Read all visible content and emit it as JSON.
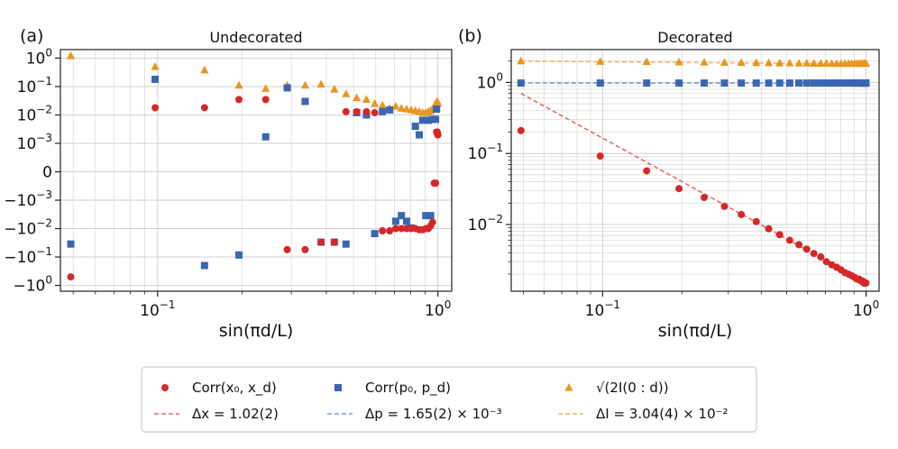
{
  "chart_data": [
    {
      "panel": "(a)",
      "title": "Undecorated",
      "type": "scatter",
      "xscale": "log",
      "yscale": "symlog",
      "xlim": [
        0.045,
        1.12
      ],
      "ylim": [
        -1.6,
        2.0
      ],
      "xlabel": "sin(πd/L)",
      "xticks": [
        {
          "value": 0.1,
          "base": "10",
          "exp": "−1"
        },
        {
          "value": 1.0,
          "base": "10",
          "exp": "0"
        }
      ],
      "yticks": [
        {
          "value": 1,
          "base": "10",
          "exp": "0"
        },
        {
          "value": 0.1,
          "base": "10",
          "exp": "−1"
        },
        {
          "value": 0.01,
          "base": "10",
          "exp": "−2"
        },
        {
          "value": 0.001,
          "base": "10",
          "exp": "−3"
        },
        {
          "value": 0,
          "base": "0",
          "exp": ""
        },
        {
          "value": -0.001,
          "base": "−10",
          "exp": "−3"
        },
        {
          "value": -0.01,
          "base": "−10",
          "exp": "−2"
        },
        {
          "value": -0.1,
          "base": "−10",
          "exp": "−1"
        },
        {
          "value": -1,
          "base": "−10",
          "exp": "0"
        }
      ],
      "series": [
        {
          "name": "Corr(x0, xd)",
          "marker": "circle",
          "color": "#d62728",
          "x": [
            0.049,
            0.098,
            0.147,
            0.195,
            0.243,
            0.29,
            0.336,
            0.383,
            0.427,
            0.47,
            0.513,
            0.556,
            0.595,
            0.634,
            0.673,
            0.707,
            0.741,
            0.773,
            0.803,
            0.831,
            0.858,
            0.882,
            0.905,
            0.924,
            0.942,
            0.957,
            0.97,
            0.981,
            0.989,
            0.995,
            0.999,
            1.0
          ],
          "y": [
            -0.5,
            0.018,
            0.018,
            0.035,
            0.035,
            -0.055,
            -0.055,
            -0.03,
            -0.03,
            0.013,
            0.013,
            0.013,
            0.012,
            -0.012,
            -0.012,
            -0.01,
            -0.01,
            -0.01,
            -0.01,
            -0.01,
            -0.011,
            -0.011,
            -0.01,
            -0.01,
            -0.008,
            -0.006,
            -0.0004,
            -0.0004,
            0.0025,
            0.0025,
            0.002,
            0.002
          ]
        },
        {
          "name": "Corr(p0, pd)",
          "marker": "square",
          "color": "#3a66b0",
          "x": [
            0.049,
            0.098,
            0.147,
            0.195,
            0.243,
            0.29,
            0.336,
            0.383,
            0.427,
            0.47,
            0.513,
            0.556,
            0.595,
            0.634,
            0.673,
            0.707,
            0.741,
            0.773,
            0.803,
            0.831,
            0.858,
            0.882,
            0.905,
            0.924,
            0.942,
            0.957,
            0.97,
            0.981,
            0.989
          ],
          "y": [
            -0.035,
            0.18,
            -0.2,
            -0.085,
            0.0017,
            0.09,
            0.03,
            -0.03,
            -0.03,
            -0.035,
            0.012,
            0.01,
            -0.015,
            0.013,
            0.015,
            -0.0055,
            -0.0035,
            -0.0055,
            -0.0095,
            0.004,
            0.002,
            0.0065,
            -0.0035,
            0.0065,
            -0.0035,
            0.007,
            0.007,
            0.007,
            0.016
          ]
        },
        {
          "name": "√(2I(0:d))",
          "marker": "triangle",
          "color": "#e8961e",
          "x": [
            0.049,
            0.098,
            0.147,
            0.195,
            0.243,
            0.29,
            0.336,
            0.383,
            0.427,
            0.47,
            0.513,
            0.556,
            0.595,
            0.634,
            0.673,
            0.707,
            0.741,
            0.773,
            0.803,
            0.831,
            0.858,
            0.882,
            0.905,
            0.924,
            0.942,
            0.957,
            0.97,
            0.981,
            0.989,
            0.995,
            0.999
          ],
          "y": [
            1.2,
            0.5,
            0.38,
            0.11,
            0.085,
            0.11,
            0.11,
            0.12,
            0.08,
            0.055,
            0.04,
            0.035,
            0.025,
            0.022,
            0.017,
            0.02,
            0.017,
            0.016,
            0.015,
            0.014,
            0.013,
            0.012,
            0.012,
            0.013,
            0.014,
            0.016,
            0.02,
            0.025,
            0.028,
            0.03,
            0.025
          ]
        }
      ]
    },
    {
      "panel": "(b)",
      "title": "Decorated",
      "type": "scatter",
      "xscale": "log",
      "yscale": "log",
      "xlim": [
        0.045,
        1.12
      ],
      "ylim": [
        0.00115,
        2.9
      ],
      "xlabel": "sin(πd/L)",
      "xticks": [
        {
          "value": 0.1,
          "base": "10",
          "exp": "−1"
        },
        {
          "value": 1.0,
          "base": "10",
          "exp": "0"
        }
      ],
      "yticks": [
        {
          "value": 1,
          "base": "10",
          "exp": "0"
        },
        {
          "value": 0.1,
          "base": "10",
          "exp": "−1"
        },
        {
          "value": 0.01,
          "base": "10",
          "exp": "−2"
        }
      ],
      "series": [
        {
          "name": "Corr(x0, xd)",
          "marker": "circle",
          "color": "#d62728",
          "x": [
            0.049,
            0.098,
            0.147,
            0.195,
            0.243,
            0.29,
            0.336,
            0.383,
            0.427,
            0.47,
            0.513,
            0.556,
            0.595,
            0.634,
            0.673,
            0.707,
            0.741,
            0.773,
            0.803,
            0.831,
            0.858,
            0.882,
            0.905,
            0.924,
            0.942,
            0.957,
            0.97,
            0.981,
            0.989,
            0.995,
            0.999
          ],
          "y": [
            0.21,
            0.092,
            0.057,
            0.032,
            0.024,
            0.018,
            0.0138,
            0.011,
            0.0087,
            0.0072,
            0.006,
            0.0052,
            0.0045,
            0.0039,
            0.0035,
            0.003,
            0.0027,
            0.0025,
            0.0023,
            0.0021,
            0.002,
            0.0019,
            0.0018,
            0.0017,
            0.0017,
            0.0016,
            0.0016,
            0.0015,
            0.0015,
            0.0015,
            0.0015
          ]
        },
        {
          "name": "Corr(p0, pd)",
          "marker": "square",
          "color": "#3a66b0",
          "x": [
            0.049,
            0.098,
            0.147,
            0.195,
            0.243,
            0.29,
            0.336,
            0.383,
            0.427,
            0.47,
            0.513,
            0.556,
            0.595,
            0.634,
            0.673,
            0.707,
            0.741,
            0.773,
            0.803,
            0.831,
            0.858,
            0.882,
            0.905,
            0.924,
            0.942,
            0.957,
            0.97,
            0.981,
            0.989,
            0.995,
            0.999
          ],
          "y": [
            0.98,
            0.98,
            0.98,
            0.98,
            0.98,
            0.98,
            0.98,
            0.98,
            0.98,
            0.98,
            0.98,
            0.98,
            0.98,
            0.98,
            0.98,
            0.98,
            0.98,
            0.98,
            0.98,
            0.98,
            0.98,
            0.98,
            0.98,
            0.98,
            0.98,
            0.98,
            0.98,
            0.98,
            0.98,
            0.98,
            0.98
          ]
        },
        {
          "name": "√(2I(0:d))",
          "marker": "triangle",
          "color": "#e8961e",
          "x": [
            0.049,
            0.098,
            0.147,
            0.195,
            0.243,
            0.29,
            0.336,
            0.383,
            0.427,
            0.47,
            0.513,
            0.556,
            0.595,
            0.634,
            0.673,
            0.707,
            0.741,
            0.773,
            0.803,
            0.831,
            0.858,
            0.882,
            0.905,
            0.924,
            0.942,
            0.957,
            0.97,
            0.981,
            0.989,
            0.995,
            0.999
          ],
          "y": [
            2.0,
            1.97,
            1.95,
            1.93,
            1.92,
            1.91,
            1.9,
            1.89,
            1.88,
            1.87,
            1.87,
            1.86,
            1.86,
            1.85,
            1.85,
            1.85,
            1.84,
            1.84,
            1.84,
            1.84,
            1.84,
            1.84,
            1.84,
            1.84,
            1.84,
            1.84,
            1.84,
            1.84,
            1.84,
            1.84,
            1.84
          ]
        }
      ],
      "fit_lines": [
        {
          "name": "Δx = 1.02(2)",
          "color": "#e06a66",
          "x": [
            0.049,
            1.0
          ],
          "y": [
            0.7,
            0.00153
          ]
        },
        {
          "name": "Δp = 1.65(2) × 10−3",
          "color": "#7b9fd1",
          "x": [
            0.049,
            1.0
          ],
          "y": [
            0.98,
            0.975
          ]
        },
        {
          "name": "ΔI = 3.04(4) × 10−2",
          "color": "#f3b46a",
          "x": [
            0.049,
            1.0
          ],
          "y": [
            2.0,
            1.82
          ]
        }
      ]
    }
  ],
  "legend": {
    "placement": "bottom-center",
    "entries": [
      {
        "kind": "marker",
        "marker": "circle",
        "color": "#d62728",
        "label": "Corr(x₀, x_d)"
      },
      {
        "kind": "marker",
        "marker": "square",
        "color": "#3a66b0",
        "label": "Corr(p₀, p_d)"
      },
      {
        "kind": "marker",
        "marker": "triangle",
        "color": "#e8961e",
        "label": "√(2I(0 : d))"
      },
      {
        "kind": "line",
        "color": "#e06a66",
        "label": "Δx = 1.02(2)"
      },
      {
        "kind": "line",
        "color": "#7b9fd1",
        "label": "Δp = 1.65(2) × 10⁻³"
      },
      {
        "kind": "line",
        "color": "#f3b46a",
        "label": "ΔI = 3.04(4) × 10⁻²"
      }
    ]
  }
}
